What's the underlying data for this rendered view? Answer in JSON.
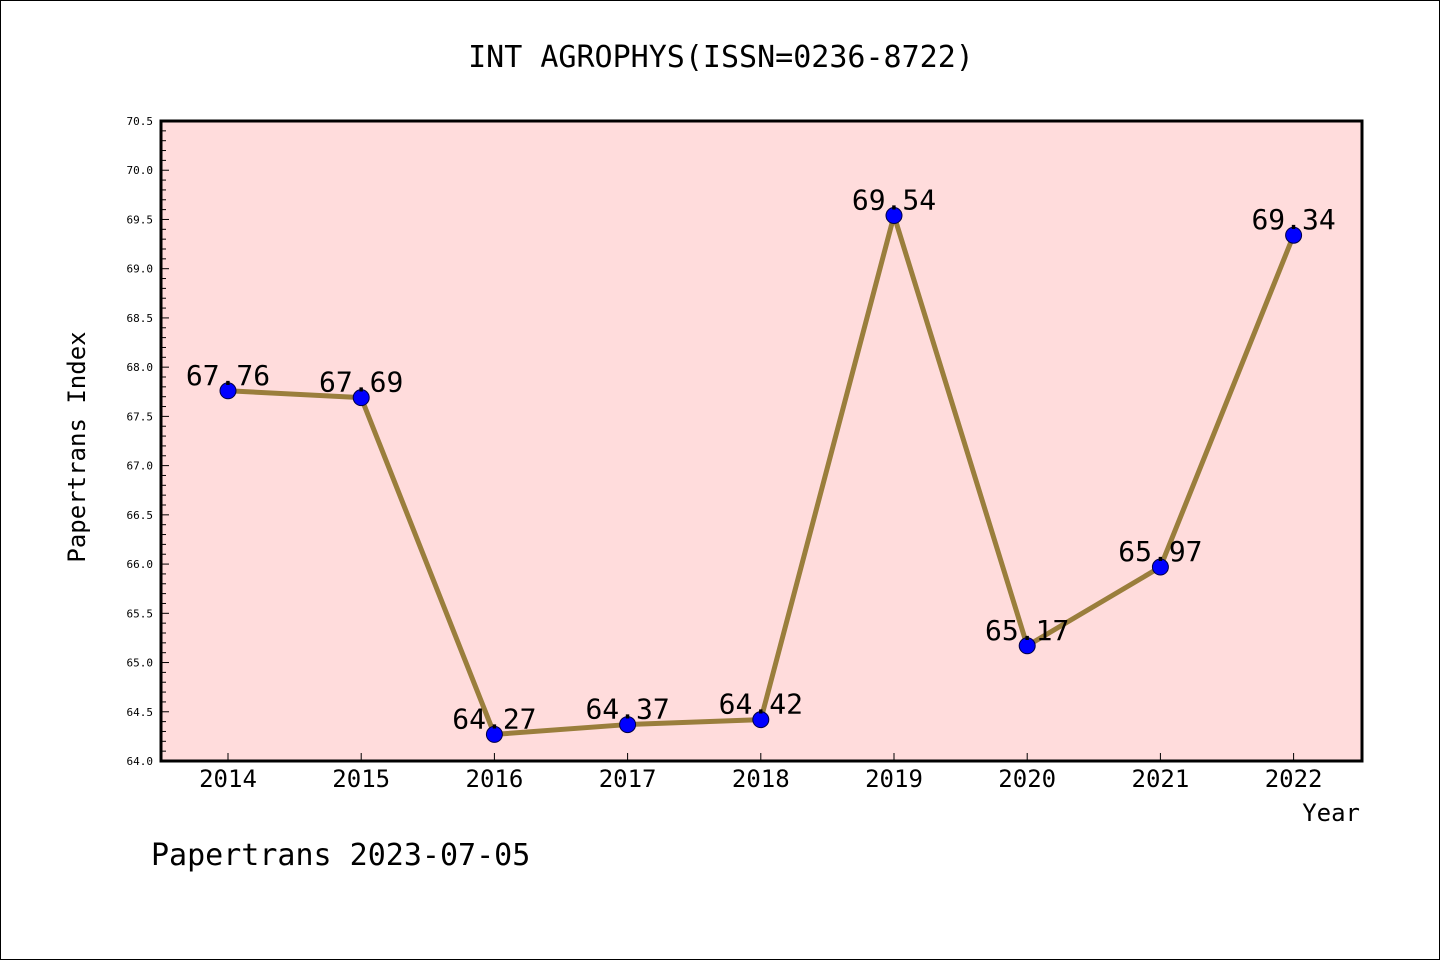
{
  "chart_data": {
    "type": "line",
    "title": "INT AGROPHYS(ISSN=0236-8722)",
    "xlabel": "Year",
    "ylabel": "Papertrans Index",
    "categories": [
      "2014",
      "2015",
      "2016",
      "2017",
      "2018",
      "2019",
      "2020",
      "2021",
      "2022"
    ],
    "series": [
      {
        "values": [
          67.76,
          67.69,
          64.27,
          64.37,
          64.42,
          69.54,
          65.17,
          65.97,
          69.34
        ],
        "labels": [
          "67.76",
          "67.69",
          "64.27",
          "64.37",
          "64.42",
          "69.54",
          "65.17",
          "65.97",
          "69.34"
        ]
      }
    ],
    "ylim": [
      64.0,
      70.5
    ],
    "yticks": [
      "64.0",
      "64.5",
      "65.0",
      "65.5",
      "66.0",
      "66.5",
      "67.0",
      "67.5",
      "68.0",
      "68.5",
      "69.0",
      "69.5",
      "70.0",
      "70.5"
    ],
    "grid": false,
    "colors": {
      "plot_background": "#ffdcdc",
      "line": "#9a7e3c",
      "marker": "#0000ff"
    }
  },
  "footer": "Papertrans 2023-07-05"
}
